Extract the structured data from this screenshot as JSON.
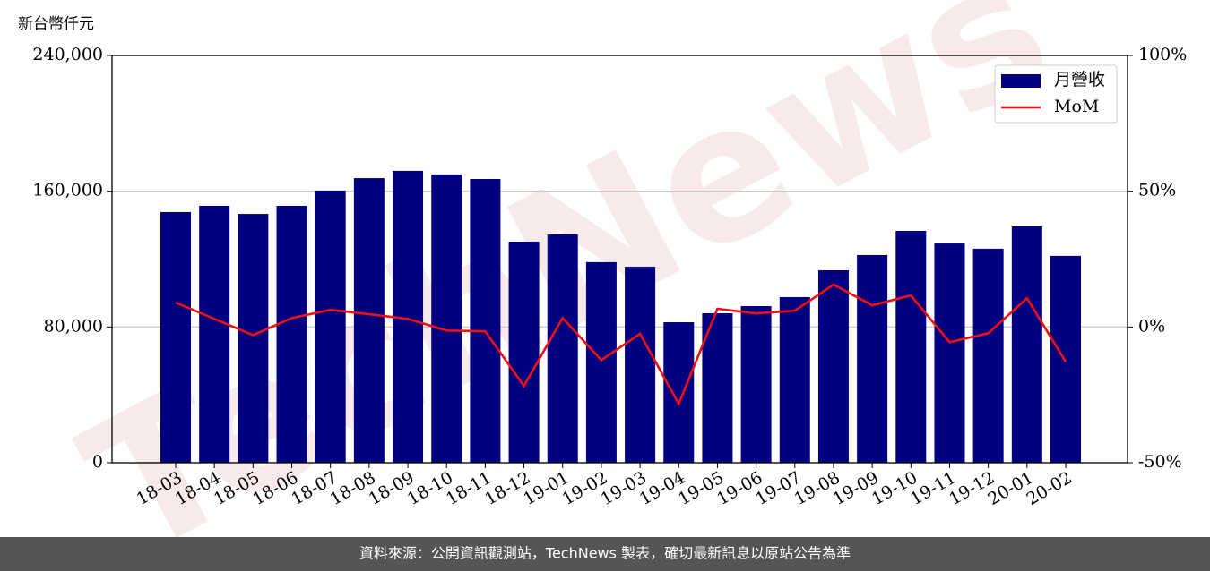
{
  "chart_data": {
    "type": "bar-line",
    "y_axis_label": "新台幣仟元",
    "watermark": "TechNews",
    "footer": "資料來源：公開資訊觀測站，TechNews 製表，確切最新訊息以原站公告為準",
    "categories": [
      "18-03",
      "18-04",
      "18-05",
      "18-06",
      "18-07",
      "18-08",
      "18-09",
      "18-10",
      "18-11",
      "18-12",
      "19-01",
      "19-02",
      "19-03",
      "19-04",
      "19-05",
      "19-06",
      "19-07",
      "19-08",
      "19-09",
      "19-10",
      "19-11",
      "19-12",
      "20-01",
      "20-02"
    ],
    "series": [
      {
        "name": "月營收",
        "type": "bar",
        "color": "#000080",
        "values": [
          147700,
          151400,
          146600,
          151400,
          160400,
          167700,
          172000,
          169900,
          167200,
          130300,
          134500,
          118200,
          115500,
          82800,
          88100,
          92300,
          97600,
          113400,
          122400,
          136600,
          129200,
          126100,
          139300,
          121900
        ]
      },
      {
        "name": "MoM",
        "type": "line",
        "color": "#ee1111",
        "axis": "y2",
        "values": [
          9,
          3,
          -3,
          3.3,
          6.3,
          4.7,
          3,
          -1.3,
          -1.6,
          -21.7,
          3.3,
          -12.2,
          -2.5,
          -28.3,
          6.7,
          5,
          6,
          15.6,
          8,
          11.6,
          -5.6,
          -2.3,
          10.6,
          -12.8
        ]
      }
    ],
    "ylim": [
      0,
      240000
    ],
    "yticks": [
      0,
      {
        "value": 80000,
        "label": "80,000"
      },
      {
        "value": 160000,
        "label": "160,000"
      },
      {
        "value": 240000,
        "label": "240,000"
      }
    ],
    "y2lim": [
      -50,
      100
    ],
    "y2ticks": [
      {
        "value": -50,
        "label": "-50%"
      },
      {
        "value": 0,
        "label": "0%"
      },
      {
        "value": 50,
        "label": "50%"
      },
      {
        "value": 100,
        "label": "100%"
      }
    ],
    "grid": true,
    "legend": "upper-right"
  }
}
